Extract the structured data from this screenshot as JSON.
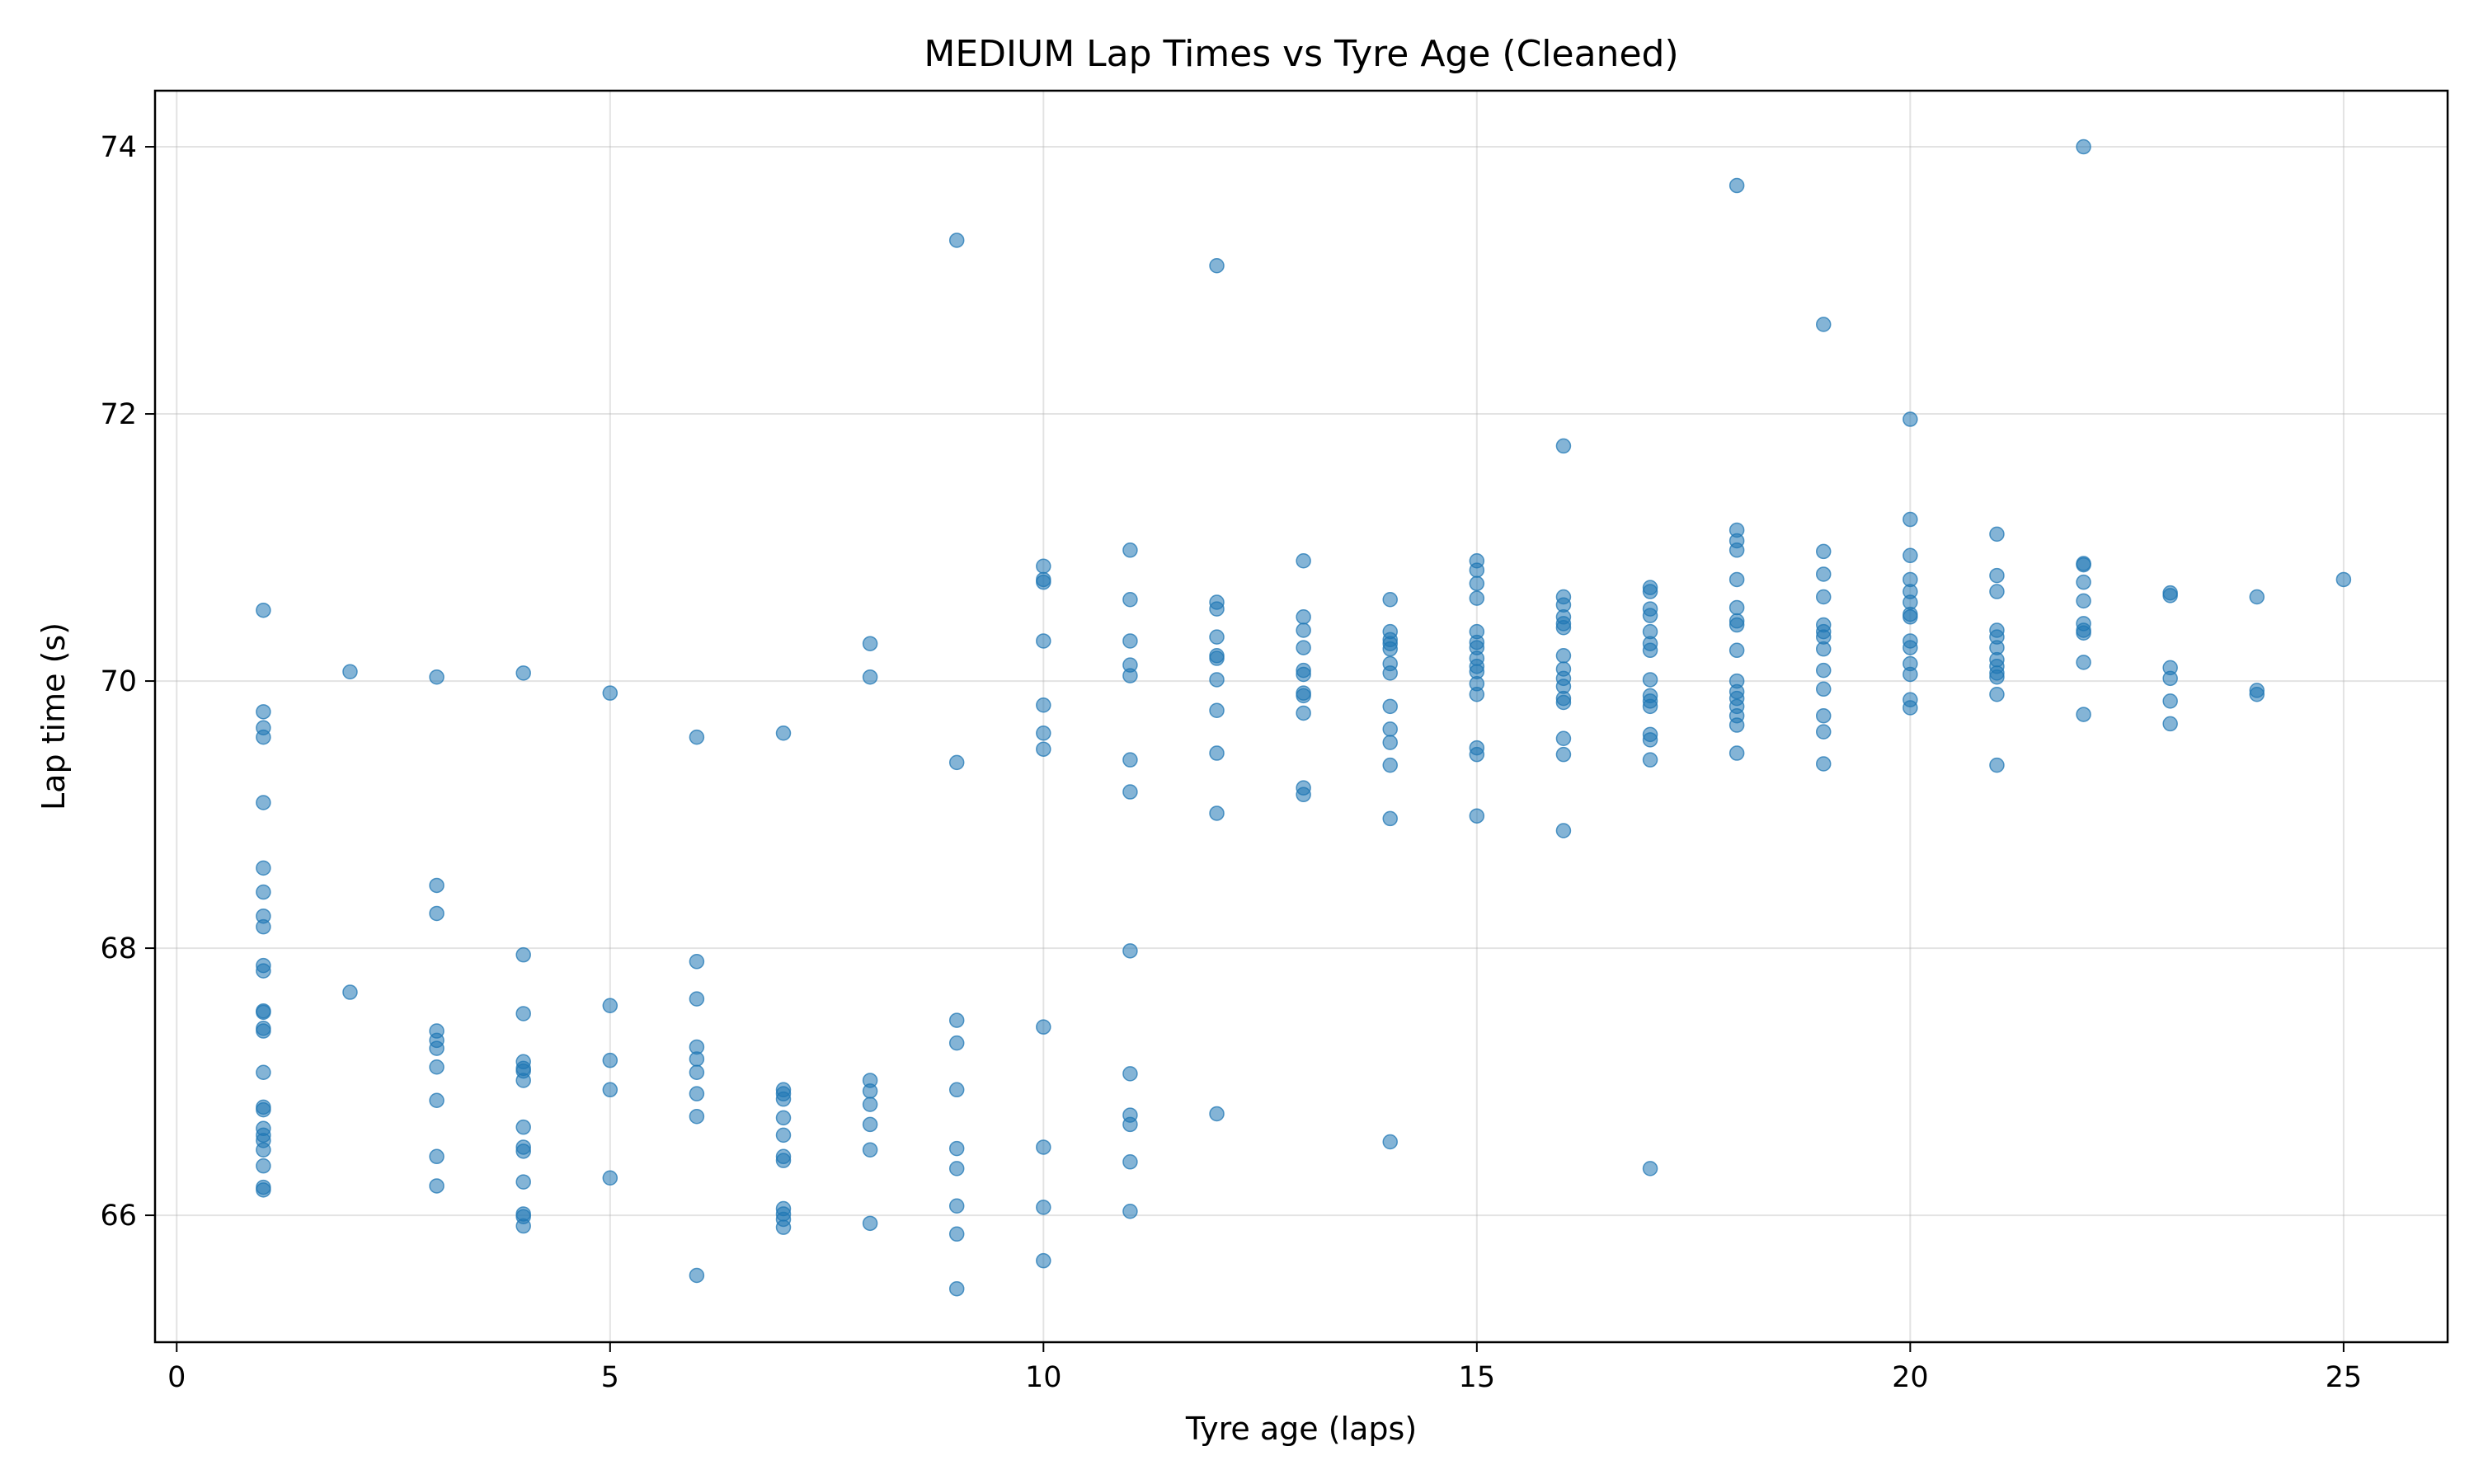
{
  "chart_data": {
    "type": "scatter",
    "title": "MEDIUM Lap Times vs Tyre Age (Cleaned)",
    "xlabel": "Tyre age (laps)",
    "ylabel": "Lap time (s)",
    "xlim": [
      -0.25,
      26.2
    ],
    "ylim": [
      65.05,
      74.42
    ],
    "xticks": [
      0,
      5,
      10,
      15,
      20,
      25
    ],
    "yticks": [
      66,
      68,
      70,
      72,
      74
    ],
    "xtick_labels": [
      "0",
      "5",
      "10",
      "15",
      "20",
      "25"
    ],
    "ytick_labels": [
      "66",
      "68",
      "70",
      "72",
      "74"
    ],
    "grid": true,
    "marker_color": "#1f77b4",
    "points": [
      [
        1,
        70.53
      ],
      [
        1,
        69.77
      ],
      [
        1,
        69.65
      ],
      [
        1,
        69.58
      ],
      [
        1,
        69.09
      ],
      [
        1,
        68.6
      ],
      [
        1,
        68.42
      ],
      [
        1,
        68.24
      ],
      [
        1,
        68.16
      ],
      [
        1,
        67.87
      ],
      [
        1,
        67.83
      ],
      [
        1,
        67.53
      ],
      [
        1,
        67.52
      ],
      [
        1,
        67.4
      ],
      [
        1,
        67.38
      ],
      [
        1,
        67.07
      ],
      [
        1,
        66.81
      ],
      [
        1,
        66.79
      ],
      [
        1,
        66.65
      ],
      [
        1,
        66.6
      ],
      [
        1,
        66.56
      ],
      [
        1,
        66.49
      ],
      [
        1,
        66.37
      ],
      [
        1,
        66.21
      ],
      [
        1,
        66.19
      ],
      [
        2,
        70.07
      ],
      [
        2,
        67.67
      ],
      [
        3,
        70.03
      ],
      [
        3,
        68.47
      ],
      [
        3,
        68.26
      ],
      [
        3,
        67.38
      ],
      [
        3,
        67.31
      ],
      [
        3,
        67.25
      ],
      [
        3,
        67.11
      ],
      [
        3,
        66.86
      ],
      [
        3,
        66.44
      ],
      [
        3,
        66.22
      ],
      [
        4,
        70.06
      ],
      [
        4,
        67.95
      ],
      [
        4,
        67.51
      ],
      [
        4,
        67.15
      ],
      [
        4,
        67.1
      ],
      [
        4,
        67.08
      ],
      [
        4,
        67.01
      ],
      [
        4,
        66.66
      ],
      [
        4,
        66.51
      ],
      [
        4,
        66.48
      ],
      [
        4,
        66.25
      ],
      [
        4,
        66.01
      ],
      [
        4,
        65.99
      ],
      [
        4,
        65.92
      ],
      [
        5,
        69.91
      ],
      [
        5,
        67.57
      ],
      [
        5,
        67.16
      ],
      [
        5,
        66.94
      ],
      [
        5,
        66.28
      ],
      [
        6,
        69.58
      ],
      [
        6,
        67.9
      ],
      [
        6,
        67.62
      ],
      [
        6,
        67.26
      ],
      [
        6,
        67.17
      ],
      [
        6,
        67.07
      ],
      [
        6,
        66.91
      ],
      [
        6,
        66.74
      ],
      [
        6,
        65.55
      ],
      [
        7,
        69.61
      ],
      [
        7,
        66.94
      ],
      [
        7,
        66.91
      ],
      [
        7,
        66.87
      ],
      [
        7,
        66.73
      ],
      [
        7,
        66.6
      ],
      [
        7,
        66.44
      ],
      [
        7,
        66.41
      ],
      [
        7,
        66.05
      ],
      [
        7,
        66.01
      ],
      [
        7,
        65.97
      ],
      [
        7,
        65.91
      ],
      [
        8,
        70.28
      ],
      [
        8,
        70.03
      ],
      [
        8,
        67.01
      ],
      [
        8,
        66.93
      ],
      [
        8,
        66.83
      ],
      [
        8,
        66.68
      ],
      [
        8,
        66.49
      ],
      [
        8,
        65.94
      ],
      [
        9,
        73.3
      ],
      [
        9,
        69.39
      ],
      [
        9,
        67.46
      ],
      [
        9,
        67.29
      ],
      [
        9,
        66.94
      ],
      [
        9,
        66.5
      ],
      [
        9,
        66.35
      ],
      [
        9,
        66.07
      ],
      [
        9,
        65.86
      ],
      [
        9,
        65.45
      ],
      [
        10,
        70.86
      ],
      [
        10,
        70.76
      ],
      [
        10,
        70.74
      ],
      [
        10,
        70.3
      ],
      [
        10,
        69.82
      ],
      [
        10,
        69.61
      ],
      [
        10,
        69.49
      ],
      [
        10,
        67.41
      ],
      [
        10,
        66.51
      ],
      [
        10,
        66.06
      ],
      [
        10,
        65.66
      ],
      [
        11,
        70.98
      ],
      [
        11,
        70.61
      ],
      [
        11,
        70.3
      ],
      [
        11,
        70.12
      ],
      [
        11,
        70.04
      ],
      [
        11,
        69.41
      ],
      [
        11,
        69.17
      ],
      [
        11,
        67.98
      ],
      [
        11,
        67.06
      ],
      [
        11,
        66.75
      ],
      [
        11,
        66.68
      ],
      [
        11,
        66.4
      ],
      [
        11,
        66.03
      ],
      [
        12,
        73.11
      ],
      [
        12,
        70.59
      ],
      [
        12,
        70.54
      ],
      [
        12,
        70.33
      ],
      [
        12,
        70.19
      ],
      [
        12,
        70.17
      ],
      [
        12,
        70.01
      ],
      [
        12,
        69.78
      ],
      [
        12,
        69.46
      ],
      [
        12,
        69.01
      ],
      [
        12,
        66.76
      ],
      [
        13,
        70.9
      ],
      [
        13,
        70.48
      ],
      [
        13,
        70.38
      ],
      [
        13,
        70.25
      ],
      [
        13,
        70.08
      ],
      [
        13,
        70.05
      ],
      [
        13,
        69.91
      ],
      [
        13,
        69.89
      ],
      [
        13,
        69.76
      ],
      [
        13,
        69.2
      ],
      [
        13,
        69.15
      ],
      [
        14,
        70.61
      ],
      [
        14,
        70.37
      ],
      [
        14,
        70.31
      ],
      [
        14,
        70.28
      ],
      [
        14,
        70.24
      ],
      [
        14,
        70.13
      ],
      [
        14,
        70.06
      ],
      [
        14,
        69.81
      ],
      [
        14,
        69.64
      ],
      [
        14,
        69.54
      ],
      [
        14,
        69.37
      ],
      [
        14,
        68.97
      ],
      [
        14,
        66.55
      ],
      [
        15,
        70.9
      ],
      [
        15,
        70.83
      ],
      [
        15,
        70.73
      ],
      [
        15,
        70.62
      ],
      [
        15,
        70.37
      ],
      [
        15,
        70.29
      ],
      [
        15,
        70.25
      ],
      [
        15,
        70.17
      ],
      [
        15,
        70.11
      ],
      [
        15,
        70.07
      ],
      [
        15,
        69.98
      ],
      [
        15,
        69.9
      ],
      [
        15,
        69.5
      ],
      [
        15,
        69.45
      ],
      [
        15,
        68.99
      ],
      [
        16,
        71.76
      ],
      [
        16,
        70.63
      ],
      [
        16,
        70.57
      ],
      [
        16,
        70.48
      ],
      [
        16,
        70.43
      ],
      [
        16,
        70.4
      ],
      [
        16,
        70.19
      ],
      [
        16,
        70.09
      ],
      [
        16,
        70.02
      ],
      [
        16,
        69.96
      ],
      [
        16,
        69.87
      ],
      [
        16,
        69.84
      ],
      [
        16,
        69.57
      ],
      [
        16,
        69.45
      ],
      [
        16,
        68.88
      ],
      [
        17,
        70.7
      ],
      [
        17,
        70.67
      ],
      [
        17,
        70.54
      ],
      [
        17,
        70.49
      ],
      [
        17,
        70.37
      ],
      [
        17,
        70.28
      ],
      [
        17,
        70.23
      ],
      [
        17,
        70.01
      ],
      [
        17,
        69.89
      ],
      [
        17,
        69.85
      ],
      [
        17,
        69.81
      ],
      [
        17,
        69.6
      ],
      [
        17,
        69.56
      ],
      [
        17,
        69.41
      ],
      [
        17,
        66.35
      ],
      [
        18,
        73.71
      ],
      [
        18,
        71.13
      ],
      [
        18,
        71.05
      ],
      [
        18,
        70.98
      ],
      [
        18,
        70.76
      ],
      [
        18,
        70.55
      ],
      [
        18,
        70.45
      ],
      [
        18,
        70.42
      ],
      [
        18,
        70.23
      ],
      [
        18,
        70.0
      ],
      [
        18,
        69.92
      ],
      [
        18,
        69.87
      ],
      [
        18,
        69.81
      ],
      [
        18,
        69.74
      ],
      [
        18,
        69.67
      ],
      [
        18,
        69.46
      ],
      [
        19,
        72.67
      ],
      [
        19,
        70.97
      ],
      [
        19,
        70.8
      ],
      [
        19,
        70.63
      ],
      [
        19,
        70.42
      ],
      [
        19,
        70.37
      ],
      [
        19,
        70.33
      ],
      [
        19,
        70.24
      ],
      [
        19,
        70.08
      ],
      [
        19,
        69.94
      ],
      [
        19,
        69.74
      ],
      [
        19,
        69.62
      ],
      [
        19,
        69.38
      ],
      [
        20,
        71.96
      ],
      [
        20,
        71.21
      ],
      [
        20,
        70.94
      ],
      [
        20,
        70.76
      ],
      [
        20,
        70.67
      ],
      [
        20,
        70.59
      ],
      [
        20,
        70.5
      ],
      [
        20,
        70.48
      ],
      [
        20,
        70.3
      ],
      [
        20,
        70.25
      ],
      [
        20,
        70.13
      ],
      [
        20,
        70.05
      ],
      [
        20,
        69.86
      ],
      [
        20,
        69.8
      ],
      [
        21,
        71.1
      ],
      [
        21,
        70.79
      ],
      [
        21,
        70.67
      ],
      [
        21,
        70.38
      ],
      [
        21,
        70.33
      ],
      [
        21,
        70.25
      ],
      [
        21,
        70.16
      ],
      [
        21,
        70.11
      ],
      [
        21,
        70.06
      ],
      [
        21,
        70.03
      ],
      [
        21,
        69.9
      ],
      [
        21,
        69.37
      ],
      [
        22,
        74.0
      ],
      [
        22,
        70.88
      ],
      [
        22,
        70.87
      ],
      [
        22,
        70.74
      ],
      [
        22,
        70.6
      ],
      [
        22,
        70.43
      ],
      [
        22,
        70.38
      ],
      [
        22,
        70.36
      ],
      [
        22,
        70.14
      ],
      [
        22,
        69.75
      ],
      [
        23,
        70.66
      ],
      [
        23,
        70.64
      ],
      [
        23,
        70.1
      ],
      [
        23,
        70.02
      ],
      [
        23,
        69.85
      ],
      [
        23,
        69.68
      ],
      [
        24,
        70.63
      ],
      [
        24,
        69.93
      ],
      [
        24,
        69.9
      ],
      [
        25,
        70.76
      ]
    ]
  }
}
